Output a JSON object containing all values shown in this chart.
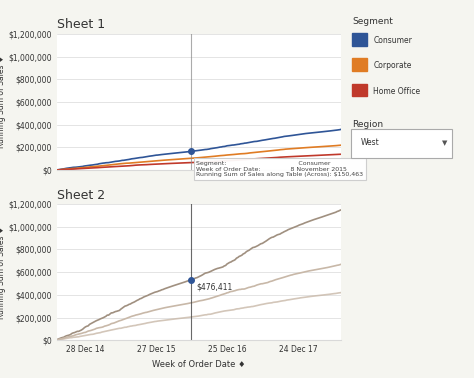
{
  "title1": "Sheet 1",
  "title2": "Sheet 2",
  "xlabel": "Week of Order Date ♦",
  "ylabel": "Running Sum of Sales ♦",
  "xtick_labels": [
    "28 Dec 14",
    "27 Dec 15",
    "25 Dec 16",
    "24 Dec 17"
  ],
  "ytick_labels_top": [
    "$0",
    "$200,000",
    "$400,000",
    "$600,000",
    "$800,000",
    "$1,000,000",
    "$1,200,000"
  ],
  "ytick_labels_bot": [
    "$0",
    "$200,000",
    "$400,000",
    "$600,000",
    "$800,000",
    "$1,000,000",
    "$1,200,000"
  ],
  "segment_colors": [
    "#2f5597",
    "#e07c24",
    "#c0392b"
  ],
  "segment_labels": [
    "Consumer",
    "Corporate",
    "Home Office"
  ],
  "legend_title_seg": "Segment",
  "legend_title_reg": "Region",
  "region_value": "West",
  "tooltip_segment": "Consumer",
  "tooltip_date": "8 November 2015",
  "tooltip_value": "$150,463",
  "ref_label": "$476,411",
  "bg_color": "#f5f5f0",
  "chart_bg": "#ffffff",
  "grid_color": "#d9d9d9",
  "text_color": "#333333",
  "gray_line_color": "#b0a090"
}
